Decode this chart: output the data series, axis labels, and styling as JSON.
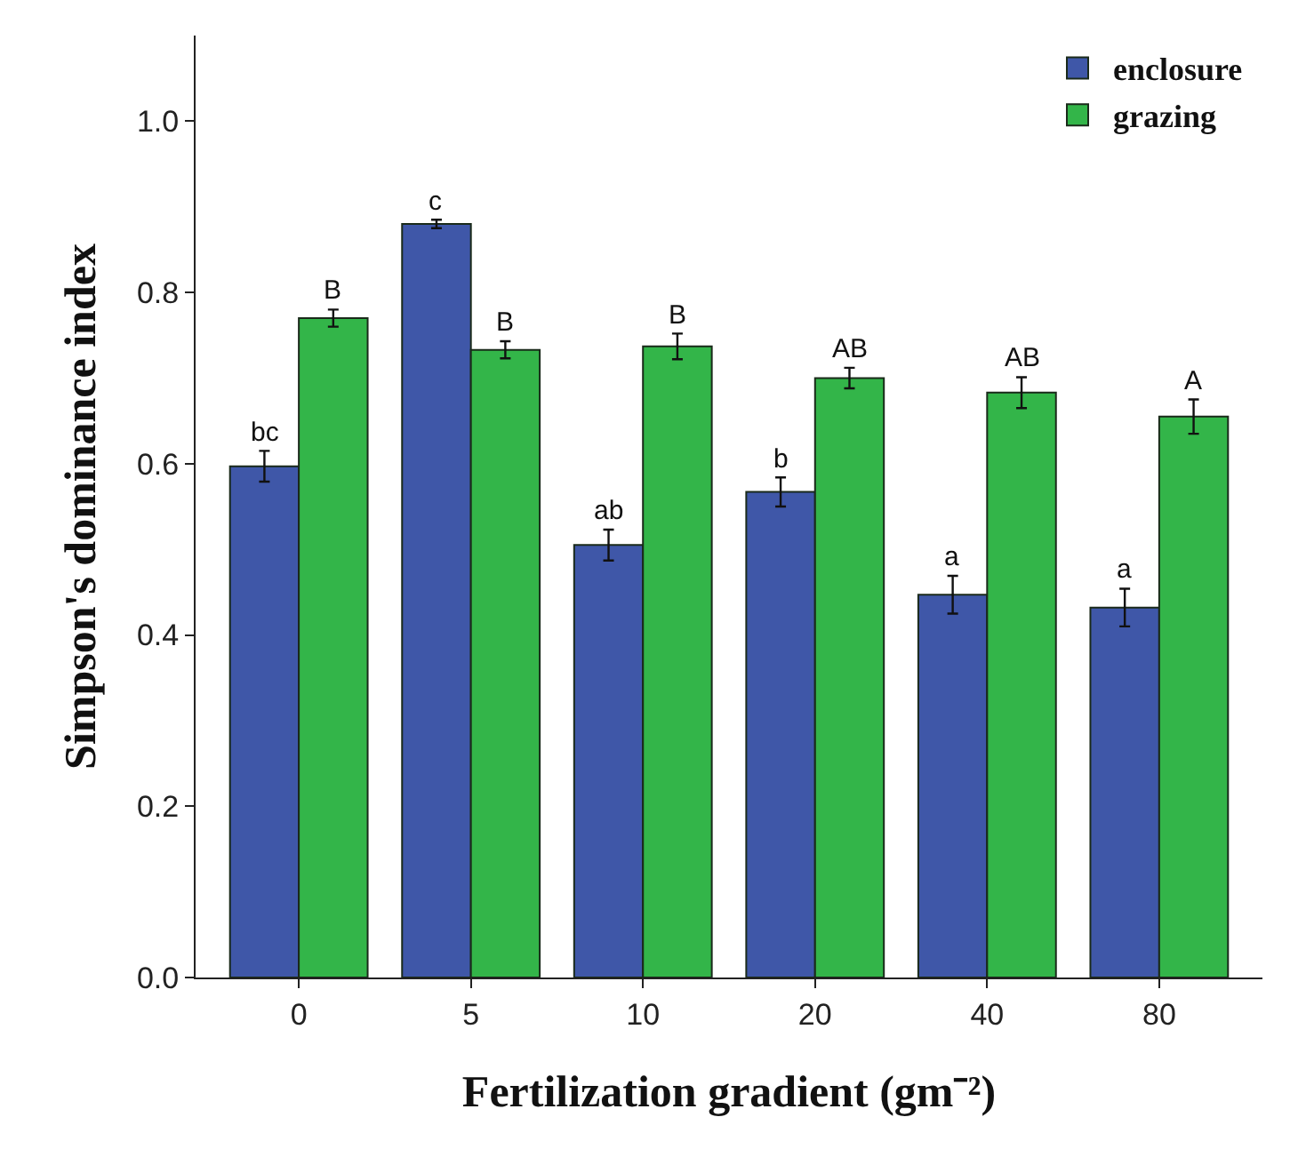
{
  "chart_data": {
    "type": "bar",
    "xlabel": "Fertilization gradient (gm⁻²)",
    "ylabel": "Simpson's dominance index",
    "categories": [
      "0",
      "5",
      "10",
      "20",
      "40",
      "80"
    ],
    "series": [
      {
        "name": "enclosure",
        "color": "#3f57a8",
        "values": [
          0.597,
          0.88,
          0.505,
          0.567,
          0.447,
          0.432
        ],
        "errors": [
          0.018,
          0.005,
          0.018,
          0.017,
          0.022,
          0.022
        ]
      },
      {
        "name": "grazing",
        "color": "#33b549",
        "values": [
          0.77,
          0.733,
          0.737,
          0.7,
          0.683,
          0.655
        ],
        "errors": [
          0.01,
          0.01,
          0.015,
          0.012,
          0.018,
          0.02
        ]
      }
    ],
    "ylim": [
      0,
      1.1
    ],
    "yticks": [
      {
        "value": 0,
        "label": "0.0"
      },
      {
        "value": 0.2,
        "label": "0.2"
      },
      {
        "value": 0.4,
        "label": "0.4"
      },
      {
        "value": 0.6,
        "label": "0.6"
      },
      {
        "value": 0.8,
        "label": "0.8"
      },
      {
        "value": 1,
        "label": "1.0"
      }
    ],
    "grid": false,
    "legend": "top right",
    "annotations": [
      {
        "text": "bc",
        "x": "0",
        "y": 0.597
      },
      {
        "text": "B",
        "x": "0",
        "y": 0.77
      },
      {
        "text": "c",
        "x": "5",
        "y": 0.88
      },
      {
        "text": "B",
        "x": "5",
        "y": 0.733
      },
      {
        "text": "ab",
        "x": "10",
        "y": 0.505
      },
      {
        "text": "B",
        "x": "10",
        "y": 0.737
      },
      {
        "text": "b",
        "x": "20",
        "y": 0.567
      },
      {
        "text": "AB",
        "x": "20",
        "y": 0.7
      },
      {
        "text": "a",
        "x": "40",
        "y": 0.447
      },
      {
        "text": "AB",
        "x": "40",
        "y": 0.683
      },
      {
        "text": "a",
        "x": "80",
        "y": 0.432
      },
      {
        "text": "A",
        "x": "80",
        "y": 0.655
      }
    ]
  }
}
